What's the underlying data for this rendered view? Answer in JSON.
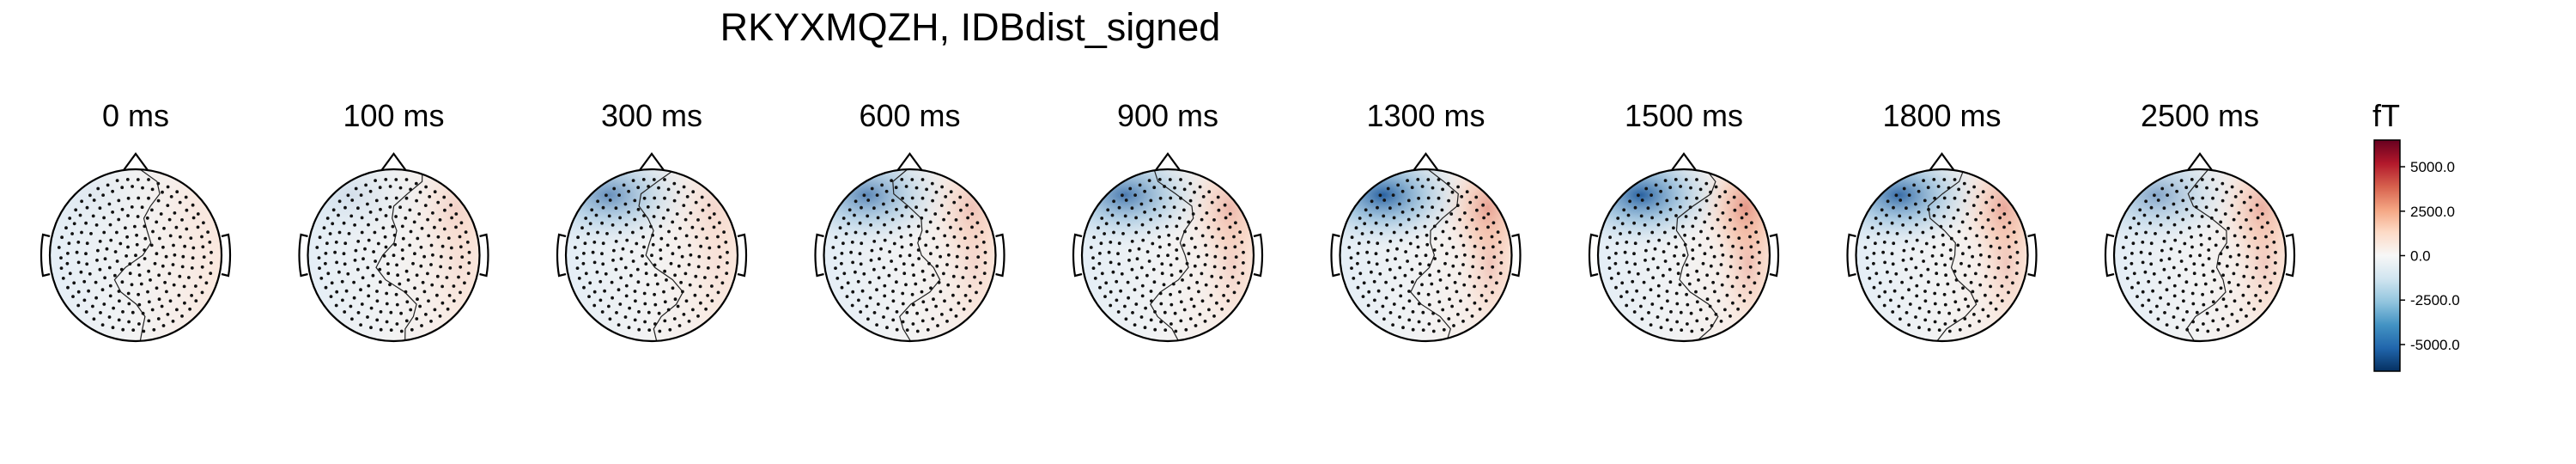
{
  "title": "RKYXMQZH, IDBdist_signed",
  "chart_data": {
    "type": "heatmap",
    "title": "RKYXMQZH, IDBdist_signed",
    "unit": "fT",
    "times": [
      "0 ms",
      "100 ms",
      "300 ms",
      "600 ms",
      "900 ms",
      "1300 ms",
      "1500 ms",
      "1800 ms",
      "2500 ms"
    ],
    "blobs": [
      {
        "neg": 0.05,
        "pos": 0.03
      },
      {
        "neg": 0.12,
        "pos": 0.18
      },
      {
        "neg": 0.65,
        "pos": 0.15
      },
      {
        "neg": 0.7,
        "pos": 0.3
      },
      {
        "neg": 0.78,
        "pos": 0.38
      },
      {
        "neg": 0.95,
        "pos": 0.55
      },
      {
        "neg": 0.95,
        "pos": 0.65
      },
      {
        "neg": 0.88,
        "pos": 0.5
      },
      {
        "neg": 0.5,
        "pos": 0.45
      }
    ],
    "colorbar": {
      "min": -6500,
      "max": 6500,
      "ticks": [
        5000,
        2500,
        0,
        -2500,
        -5000
      ],
      "tick_labels": [
        "5000.0",
        "2500.0",
        "0.0",
        "-2500.0",
        "-5000.0"
      ],
      "colormap": "RdBu_r"
    }
  }
}
